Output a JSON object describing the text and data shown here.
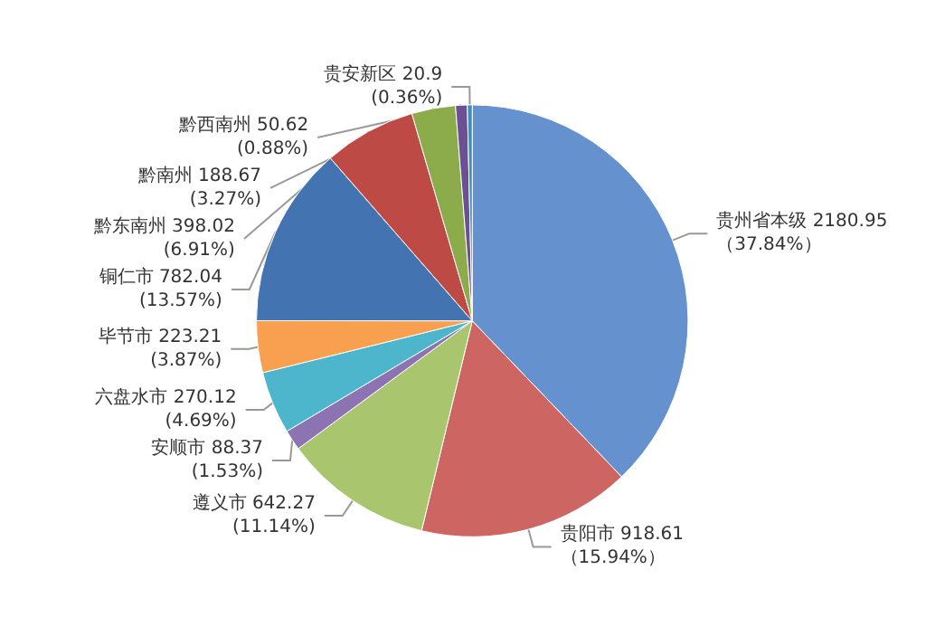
{
  "chart_data": {
    "type": "pie",
    "categories": [
      "贵州省本级",
      "贵阳市",
      "遵义市",
      "安顺市",
      "六盘水市",
      "毕节市",
      "铜仁市",
      "黔东南州",
      "黔南州",
      "黔西南州",
      "贵安新区"
    ],
    "values": [
      2180.95,
      918.61,
      642.27,
      88.37,
      270.12,
      223.21,
      782.04,
      398.02,
      188.67,
      50.62,
      20.9
    ],
    "value_labels": [
      "2180.95\n（37.84%）",
      "918.61\n（15.94%）",
      "642.27\n(11.14%)",
      "88.37\n(1.53%)",
      "270.12\n(4.69%)",
      "223.21\n(3.87%)",
      "782.04\n(13.57%)",
      "398.02\n(6.91%)",
      "188.67\n(3.27%)",
      "50.62\n(0.88%)",
      "20.9\n(0.36%)"
    ],
    "colors": [
      "#6592cf",
      "#cd6663",
      "#a9c56e",
      "#8c74b2",
      "#4db6cc",
      "#f8a050",
      "#4473b2",
      "#bd4a45",
      "#8cab4a",
      "#6b5192",
      "#3e90b6"
    ],
    "legend": false
  }
}
